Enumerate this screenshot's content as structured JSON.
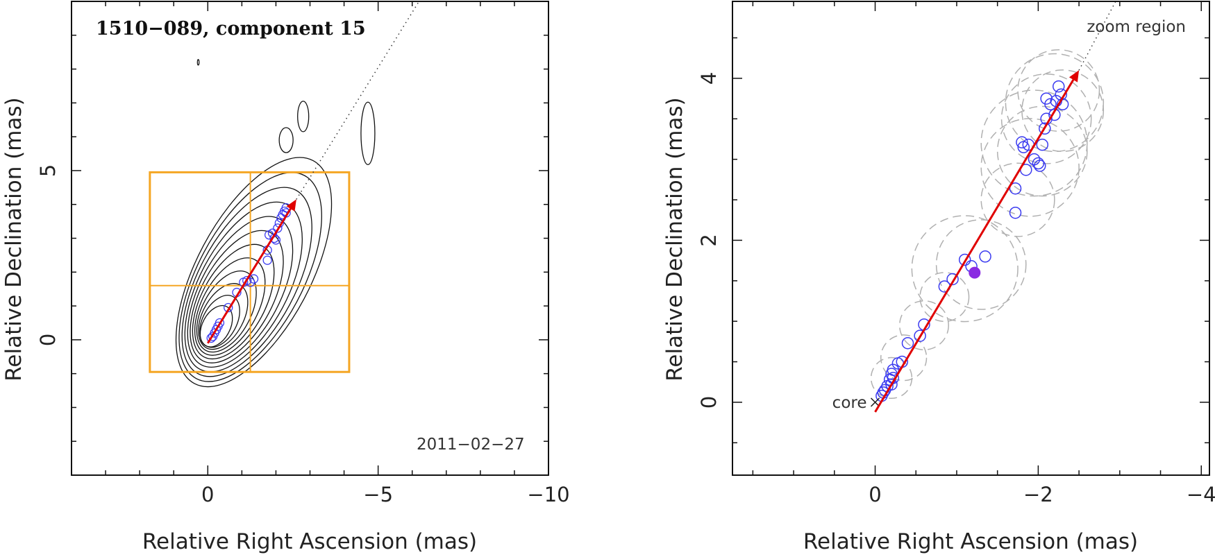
{
  "chart_data": [
    {
      "type": "scatter",
      "title": "1510−089, component 15",
      "date_label": "2011−02−27",
      "xlabel": "Relative Right Ascension (mas)",
      "ylabel": "Relative Declination (mas)",
      "xlim": [
        4,
        -10.0
      ],
      "ylim": [
        -4.0,
        10.0
      ],
      "x_reversed": true,
      "xticks": [
        0,
        -5,
        -10
      ],
      "xtick_labels": [
        "0",
        "−5",
        "−10"
      ],
      "yticks": [
        0,
        5
      ],
      "ytick_labels": [
        "0",
        "5"
      ],
      "colors": {
        "arrow": "#e00000",
        "points": "#3a3af0",
        "box": "#f5a623",
        "contours": "#111111",
        "trend_line": "#333333"
      },
      "arrow": {
        "from": [
          0.0,
          -0.1
        ],
        "to": [
          -2.6,
          4.15
        ]
      },
      "trend_line": {
        "from": [
          -2.6,
          4.15
        ],
        "to": [
          -6.2,
          10.0
        ],
        "style": "dotted"
      },
      "zoom_box": {
        "x_range": [
          1.7,
          -4.15
        ],
        "y_range": [
          -0.95,
          4.95
        ],
        "grid_x": -1.25,
        "grid_y": 1.6
      },
      "contour_levels": 12,
      "points": [
        [
          -0.1,
          0.05
        ],
        [
          -0.15,
          0.1
        ],
        [
          -0.2,
          0.2
        ],
        [
          -0.25,
          0.3
        ],
        [
          -0.3,
          0.4
        ],
        [
          -0.35,
          0.5
        ],
        [
          -0.6,
          0.95
        ],
        [
          -0.85,
          1.4
        ],
        [
          -1.05,
          1.7
        ],
        [
          -1.15,
          1.75
        ],
        [
          -1.25,
          1.7
        ],
        [
          -1.35,
          1.8
        ],
        [
          -1.75,
          2.35
        ],
        [
          -1.75,
          2.65
        ],
        [
          -1.8,
          3.1
        ],
        [
          -1.9,
          3.15
        ],
        [
          -1.95,
          3.0
        ],
        [
          -2.0,
          2.95
        ],
        [
          -2.05,
          3.3
        ],
        [
          -2.1,
          3.45
        ],
        [
          -2.15,
          3.6
        ],
        [
          -2.2,
          3.7
        ],
        [
          -2.25,
          3.8
        ],
        [
          -2.3,
          3.75
        ],
        [
          -2.3,
          3.9
        ]
      ]
    },
    {
      "type": "scatter",
      "annotation_zoom": "zoom region",
      "annotation_core": "core",
      "xlabel": "Relative Right Ascension (mas)",
      "ylabel": "Relative Declination (mas)",
      "xlim": [
        1.75,
        -4.1
      ],
      "ylim": [
        -0.9,
        4.95
      ],
      "x_reversed": true,
      "xticks": [
        0,
        -2,
        -4
      ],
      "xtick_labels": [
        "0",
        "−2",
        "−4"
      ],
      "yticks": [
        0,
        2,
        4
      ],
      "ytick_labels": [
        "0",
        "2",
        "4"
      ],
      "colors": {
        "arrow": "#e00000",
        "points": "#3a3af0",
        "filled_point": "#8a2be2",
        "uncertainty": "#b0b0b0",
        "trend_line": "#333333"
      },
      "arrow": {
        "from": [
          0.0,
          -0.12
        ],
        "to": [
          -2.5,
          4.1
        ]
      },
      "trend_line": {
        "from": [
          -2.5,
          4.1
        ],
        "to": [
          -2.95,
          4.95
        ],
        "style": "dotted"
      },
      "core_marker": [
        0.0,
        0.0
      ],
      "filled_point": [
        -1.22,
        1.6
      ],
      "points": [
        [
          -0.08,
          0.08
        ],
        [
          -0.1,
          0.12
        ],
        [
          -0.12,
          0.15
        ],
        [
          -0.15,
          0.2
        ],
        [
          -0.18,
          0.28
        ],
        [
          -0.2,
          0.35
        ],
        [
          -0.22,
          0.3
        ],
        [
          -0.22,
          0.4
        ],
        [
          -0.2,
          0.22
        ],
        [
          -0.28,
          0.48
        ],
        [
          -0.33,
          0.5
        ],
        [
          -0.4,
          0.73
        ],
        [
          -0.55,
          0.82
        ],
        [
          -0.6,
          0.96
        ],
        [
          -0.85,
          1.43
        ],
        [
          -0.95,
          1.52
        ],
        [
          -1.1,
          1.76
        ],
        [
          -1.18,
          1.68
        ],
        [
          -1.35,
          1.8
        ],
        [
          -1.72,
          2.34
        ],
        [
          -1.72,
          2.64
        ],
        [
          -1.8,
          3.21
        ],
        [
          -1.82,
          3.15
        ],
        [
          -1.85,
          2.87
        ],
        [
          -1.88,
          3.18
        ],
        [
          -1.95,
          3.0
        ],
        [
          -2.0,
          2.95
        ],
        [
          -2.02,
          2.92
        ],
        [
          -2.05,
          3.18
        ],
        [
          -2.08,
          3.38
        ],
        [
          -2.1,
          3.5
        ],
        [
          -2.1,
          3.75
        ],
        [
          -2.15,
          3.68
        ],
        [
          -2.2,
          3.55
        ],
        [
          -2.22,
          3.72
        ],
        [
          -2.25,
          3.9
        ],
        [
          -2.28,
          3.8
        ],
        [
          -2.3,
          3.68
        ]
      ],
      "uncertainty_circles": [
        [
          -0.2,
          0.3,
          0.25
        ],
        [
          -0.35,
          0.55,
          0.28
        ],
        [
          -0.6,
          0.95,
          0.3
        ],
        [
          -0.85,
          1.3,
          0.3
        ],
        [
          -1.1,
          1.65,
          0.65
        ],
        [
          -1.3,
          1.7,
          0.55
        ],
        [
          -1.75,
          2.5,
          0.45
        ],
        [
          -1.9,
          2.9,
          0.6
        ],
        [
          -1.95,
          3.2,
          0.65
        ],
        [
          -2.1,
          3.5,
          0.55
        ],
        [
          -2.2,
          3.7,
          0.6
        ],
        [
          -2.25,
          3.85,
          0.5
        ],
        [
          -2.05,
          3.1,
          0.55
        ],
        [
          -2.3,
          3.6,
          0.5
        ]
      ]
    }
  ]
}
